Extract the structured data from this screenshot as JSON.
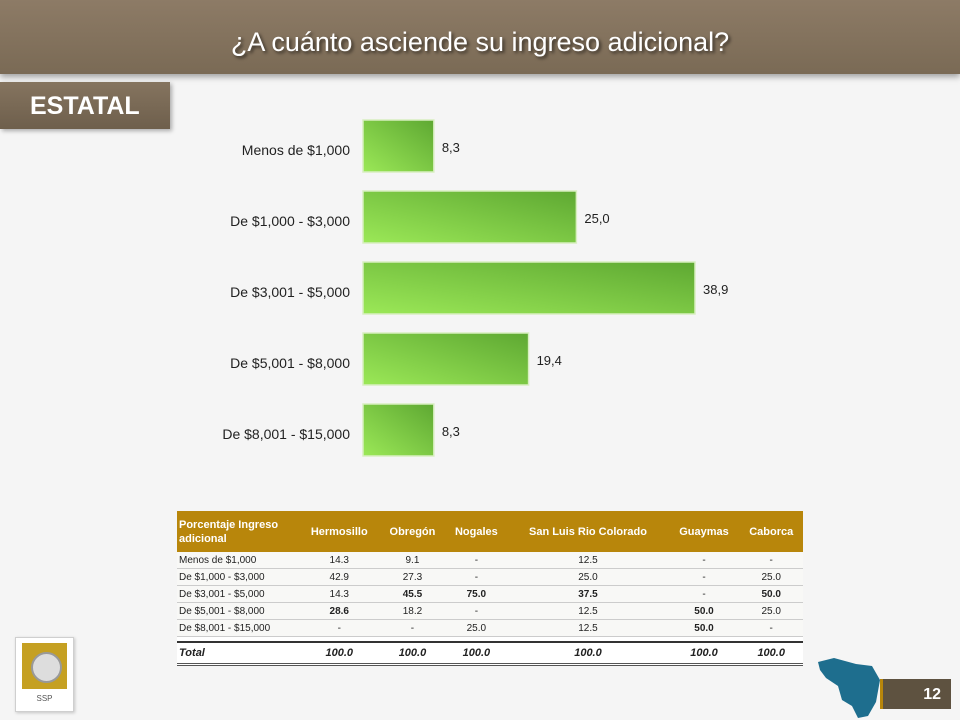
{
  "header": {
    "title": "¿A cuánto asciende su ingreso adicional?"
  },
  "section": {
    "label": "ESTATAL"
  },
  "chart_data": {
    "type": "bar",
    "orientation": "horizontal",
    "categories": [
      "Menos de $1,000",
      "De $1,000 - $3,000",
      "De $3,001 - $5,000",
      "De $5,001 - $8,000",
      "De $8,001 - $15,000"
    ],
    "values": [
      8.3,
      25.0,
      38.9,
      19.4,
      8.3
    ],
    "value_labels": [
      "8,3",
      "25,0",
      "38,9",
      "19,4",
      "8,3"
    ],
    "bar_color": "#7ecf3e",
    "xlim": [
      0,
      45
    ],
    "grid": false,
    "legend": "none"
  },
  "table": {
    "headers": [
      "Porcentaje Ingreso adicional",
      "Hermosillo",
      "Obregón",
      "Nogales",
      "San Luis Rio Colorado",
      "Guaymas",
      "Caborca"
    ],
    "rows": [
      [
        "Menos de $1,000",
        "14.3",
        "9.1",
        "-",
        "12.5",
        "-",
        "-"
      ],
      [
        "De $1,000 - $3,000",
        "42.9",
        "27.3",
        "-",
        "25.0",
        "-",
        "25.0"
      ],
      [
        "De $3,001 - $5,000",
        "14.3",
        "45.5",
        "75.0",
        "37.5",
        "-",
        "50.0"
      ],
      [
        "De $5,001 - $8,000",
        "28.6",
        "18.2",
        "-",
        "12.5",
        "50.0",
        "25.0"
      ],
      [
        "De $8,001 - $15,000",
        "-",
        "-",
        "25.0",
        "12.5",
        "50.0",
        "-"
      ]
    ],
    "total": [
      "Total",
      "100.0",
      "100.0",
      "100.0",
      "100.0",
      "100.0",
      "100.0"
    ],
    "header_color": "#b8860b"
  },
  "logo": {
    "text": "SSP"
  },
  "footer": {
    "page_number": "12"
  }
}
